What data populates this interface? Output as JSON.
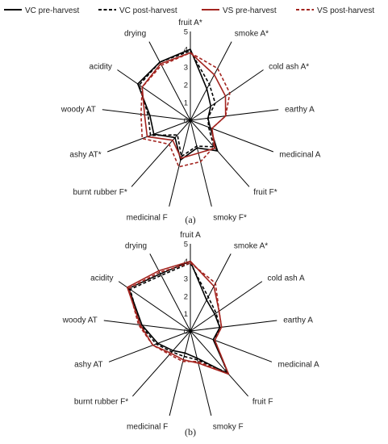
{
  "legend": [
    {
      "label": "VC pre-harvest",
      "color": "#000000",
      "dash": "solid"
    },
    {
      "label": "VC post-harvest",
      "color": "#000000",
      "dash": "dashed"
    },
    {
      "label": "VS pre-harvest",
      "color": "#a3241f",
      "dash": "solid"
    },
    {
      "label": "VS post-harvest",
      "color": "#a3241f",
      "dash": "dashed"
    }
  ],
  "chart_data": [
    {
      "type": "radar",
      "caption": "(a)",
      "axes": [
        "fruit A*",
        "smoke A*",
        "cold ash A*",
        "earthy A",
        "medicinal A",
        "fruit F*",
        "smoky F*",
        "medicinal F",
        "burnt rubber F*",
        "ashy AT*",
        "woody AT",
        "acidity",
        "drying"
      ],
      "ticks": [
        0,
        1,
        2,
        3,
        4,
        5
      ],
      "range": [
        0,
        5
      ],
      "series": [
        {
          "name": "VC pre-harvest",
          "values": [
            4.0,
            2.0,
            1.4,
            1.0,
            1.2,
            2.3,
            1.6,
            2.3,
            1.3,
            2.2,
            2.3,
            3.6,
            3.7
          ]
        },
        {
          "name": "VC post-harvest",
          "values": [
            3.9,
            2.3,
            1.7,
            1.0,
            1.1,
            2.0,
            1.5,
            2.1,
            1.1,
            2.4,
            2.4,
            3.5,
            3.7
          ]
        },
        {
          "name": "VS pre-harvest",
          "values": [
            3.8,
            2.9,
            2.4,
            2.0,
            1.3,
            2.1,
            1.9,
            2.2,
            1.5,
            2.6,
            2.6,
            3.3,
            3.6
          ]
        },
        {
          "name": "VS post-harvest",
          "values": [
            3.8,
            3.3,
            2.7,
            2.0,
            1.3,
            2.0,
            2.4,
            2.7,
            1.8,
            2.9,
            2.8,
            3.3,
            3.5
          ]
        }
      ]
    },
    {
      "type": "radar",
      "caption": "(b)",
      "axes": [
        "fruit A",
        "smoke A*",
        "cold ash A",
        "earthy A",
        "medicinal A",
        "fruit F",
        "smoky F",
        "medicinal F",
        "burnt rubber F*",
        "ashy AT",
        "woody AT",
        "acidity",
        "drying"
      ],
      "ticks": [
        0,
        1,
        2,
        3,
        4,
        5
      ],
      "range": [
        0,
        5
      ],
      "series": [
        {
          "name": "VC pre-harvest",
          "values": [
            4.0,
            2.0,
            1.7,
            1.7,
            1.4,
            3.3,
            1.6,
            1.3,
            1.5,
            2.0,
            2.8,
            4.3,
            3.7
          ]
        },
        {
          "name": "VC post-harvest",
          "values": [
            3.9,
            2.2,
            1.8,
            1.7,
            1.5,
            3.2,
            1.7,
            1.5,
            1.6,
            2.1,
            2.9,
            4.2,
            3.6
          ]
        },
        {
          "name": "VS pre-harvest",
          "values": [
            4.0,
            2.9,
            2.0,
            1.8,
            1.5,
            3.3,
            1.9,
            1.7,
            1.7,
            2.3,
            2.9,
            4.4,
            3.9
          ]
        },
        {
          "name": "VS post-harvest",
          "values": [
            3.9,
            3.1,
            2.0,
            1.8,
            1.5,
            3.3,
            1.8,
            1.8,
            1.8,
            2.3,
            3.0,
            4.3,
            3.8
          ]
        }
      ]
    }
  ]
}
